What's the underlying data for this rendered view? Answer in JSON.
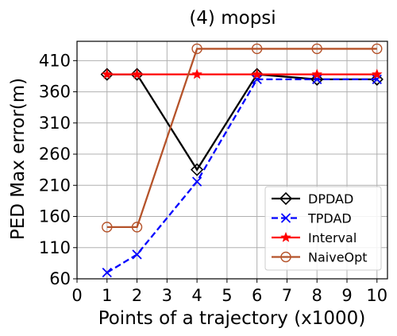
{
  "chart_data": {
    "type": "line",
    "title": "(4) mopsi",
    "xlabel": "Points of a trajectory (x1000)",
    "ylabel": "PED Max error(m)",
    "xlim": [
      0,
      10.35
    ],
    "ylim": [
      60,
      441
    ],
    "xticks": [
      0,
      1,
      2,
      3,
      4,
      5,
      6,
      7,
      8,
      9,
      10
    ],
    "yticks": [
      60,
      110,
      160,
      210,
      260,
      310,
      360,
      410
    ],
    "grid": true,
    "legend_position": "lower-right",
    "series": [
      {
        "name": "DPDAD",
        "color": "#000000",
        "dash": "solid",
        "marker": "diamond",
        "x": [
          1,
          2,
          4,
          6,
          8,
          10
        ],
        "y": [
          388,
          388,
          235,
          388,
          380,
          380
        ]
      },
      {
        "name": "TPDAD",
        "color": "#0000ff",
        "dash": "dashed",
        "marker": "x",
        "x": [
          1,
          2,
          4,
          6,
          8,
          10
        ],
        "y": [
          70,
          99,
          216,
          380,
          380,
          380
        ]
      },
      {
        "name": "Interval",
        "color": "#ff0000",
        "dash": "solid",
        "marker": "star",
        "x": [
          1,
          2,
          4,
          6,
          8,
          10
        ],
        "y": [
          388,
          388,
          388,
          388,
          388,
          388
        ]
      },
      {
        "name": "NaiveOpt",
        "color": "#b5532a",
        "dash": "solid",
        "marker": "circle",
        "x": [
          1,
          2,
          4,
          6,
          8,
          10
        ],
        "y": [
          143,
          143,
          429,
          429,
          429,
          429
        ]
      }
    ]
  }
}
